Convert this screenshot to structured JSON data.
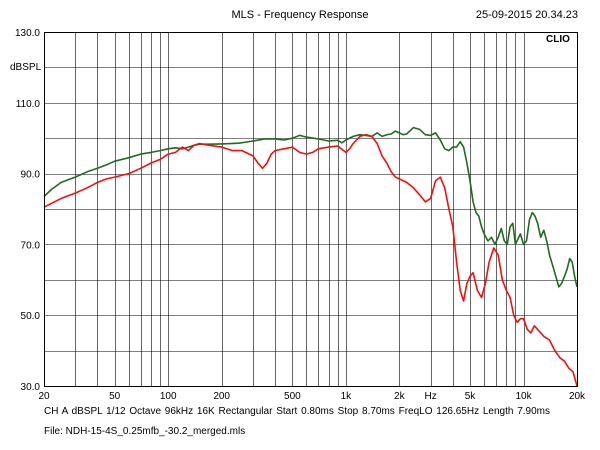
{
  "header": {
    "title": "MLS - Frequency Response",
    "timestamp": "25-09-2015 20.34.23",
    "brand": "CLIO"
  },
  "footer": {
    "info_line": "CH A  dBSPL  1/12 Octave  96kHz  16K  Rectangular  Start 0.80ms  Stop 8.70ms  FreqLO 126.65Hz  Length 7.90ms",
    "file_line": "File: NDH-15-4S_0.25mfb_-30.2_merged.mls"
  },
  "colors": {
    "series_green": "#1f6b1f",
    "series_red": "#ee1111",
    "grid": "#000000"
  },
  "chart_data": {
    "type": "line",
    "title": "MLS - Frequency Response",
    "xlabel": "",
    "ylabel": "dBSPL",
    "x_scale": "log",
    "xlim": [
      20,
      20000
    ],
    "ylim": [
      30,
      130
    ],
    "x_ticks": [
      {
        "value": 20,
        "label": "20"
      },
      {
        "value": 50,
        "label": "50"
      },
      {
        "value": 100,
        "label": "100"
      },
      {
        "value": 200,
        "label": "200"
      },
      {
        "value": 500,
        "label": "500"
      },
      {
        "value": 1000,
        "label": "1k"
      },
      {
        "value": 2000,
        "label": "2k"
      },
      {
        "value": 3000,
        "label": "Hz"
      },
      {
        "value": 5000,
        "label": "5k"
      },
      {
        "value": 10000,
        "label": "10k"
      },
      {
        "value": 20000,
        "label": "20k"
      }
    ],
    "y_ticks": [
      {
        "value": 130,
        "label": "130.0"
      },
      {
        "value": 110,
        "label": "110.0"
      },
      {
        "value": 90,
        "label": "90.0"
      },
      {
        "value": 70,
        "label": "70.0"
      },
      {
        "value": 50,
        "label": "50.0"
      },
      {
        "value": 30,
        "label": "30.0"
      }
    ],
    "grid": true,
    "series": [
      {
        "color": "#1f6b1f",
        "points": [
          [
            20,
            83.5
          ],
          [
            22,
            85.5
          ],
          [
            25,
            87.5
          ],
          [
            30,
            89
          ],
          [
            35,
            90.5
          ],
          [
            40,
            91.5
          ],
          [
            45,
            92.5
          ],
          [
            50,
            93.5
          ],
          [
            60,
            94.5
          ],
          [
            70,
            95.5
          ],
          [
            80,
            96
          ],
          [
            90,
            96.5
          ],
          [
            100,
            97
          ],
          [
            110,
            97.3
          ],
          [
            120,
            97
          ],
          [
            130,
            97.5
          ],
          [
            140,
            98
          ],
          [
            150,
            98.3
          ],
          [
            170,
            98.3
          ],
          [
            200,
            98.4
          ],
          [
            250,
            98.6
          ],
          [
            300,
            99.2
          ],
          [
            350,
            99.8
          ],
          [
            400,
            99.8
          ],
          [
            450,
            99.5
          ],
          [
            500,
            100
          ],
          [
            550,
            100.8
          ],
          [
            600,
            100.3
          ],
          [
            700,
            99.8
          ],
          [
            800,
            99.2
          ],
          [
            900,
            99.4
          ],
          [
            950,
            98.7
          ],
          [
            1000,
            99.5
          ],
          [
            1100,
            100.5
          ],
          [
            1200,
            101
          ],
          [
            1300,
            100.8
          ],
          [
            1400,
            100.5
          ],
          [
            1500,
            101.5
          ],
          [
            1600,
            100.5
          ],
          [
            1700,
            101
          ],
          [
            1800,
            101.2
          ],
          [
            1900,
            102
          ],
          [
            2000,
            101.5
          ],
          [
            2100,
            101
          ],
          [
            2200,
            101.2
          ],
          [
            2400,
            103
          ],
          [
            2600,
            102.5
          ],
          [
            2800,
            101
          ],
          [
            3000,
            100.8
          ],
          [
            3200,
            101.5
          ],
          [
            3400,
            99.5
          ],
          [
            3600,
            97
          ],
          [
            3800,
            96.5
          ],
          [
            4000,
            97.5
          ],
          [
            4200,
            97.5
          ],
          [
            4400,
            99
          ],
          [
            4600,
            97.5
          ],
          [
            4800,
            93
          ],
          [
            5000,
            88
          ],
          [
            5200,
            82
          ],
          [
            5400,
            79
          ],
          [
            5600,
            78
          ],
          [
            5800,
            75
          ],
          [
            6000,
            73
          ],
          [
            6300,
            71
          ],
          [
            6600,
            72
          ],
          [
            6900,
            70
          ],
          [
            7200,
            72
          ],
          [
            7500,
            74.5
          ],
          [
            7800,
            71
          ],
          [
            8100,
            70
          ],
          [
            8400,
            75
          ],
          [
            8700,
            76
          ],
          [
            9000,
            70
          ],
          [
            9300,
            71.5
          ],
          [
            9600,
            73
          ],
          [
            10000,
            70
          ],
          [
            10400,
            71
          ],
          [
            10800,
            77
          ],
          [
            11200,
            79
          ],
          [
            11600,
            78
          ],
          [
            12000,
            76
          ],
          [
            12500,
            72
          ],
          [
            13000,
            74
          ],
          [
            13500,
            71
          ],
          [
            14000,
            67
          ],
          [
            14600,
            64
          ],
          [
            15200,
            61
          ],
          [
            15800,
            58
          ],
          [
            16400,
            59
          ],
          [
            17000,
            61
          ],
          [
            17600,
            63
          ],
          [
            18200,
            66
          ],
          [
            18800,
            65
          ],
          [
            19400,
            61
          ],
          [
            20000,
            58
          ]
        ]
      },
      {
        "color": "#ee1111",
        "points": [
          [
            20,
            80.5
          ],
          [
            25,
            83
          ],
          [
            30,
            84.5
          ],
          [
            35,
            86
          ],
          [
            40,
            87.5
          ],
          [
            45,
            88.5
          ],
          [
            50,
            89
          ],
          [
            60,
            90
          ],
          [
            70,
            91.5
          ],
          [
            80,
            93
          ],
          [
            90,
            94
          ],
          [
            100,
            95.5
          ],
          [
            110,
            96
          ],
          [
            120,
            97.5
          ],
          [
            130,
            96.5
          ],
          [
            140,
            98
          ],
          [
            150,
            98.5
          ],
          [
            170,
            98
          ],
          [
            200,
            97.5
          ],
          [
            230,
            96.5
          ],
          [
            260,
            96.5
          ],
          [
            300,
            95
          ],
          [
            320,
            93
          ],
          [
            340,
            91.5
          ],
          [
            360,
            93
          ],
          [
            380,
            95.5
          ],
          [
            400,
            96.5
          ],
          [
            450,
            97
          ],
          [
            500,
            97.5
          ],
          [
            550,
            96
          ],
          [
            600,
            95.5
          ],
          [
            650,
            96
          ],
          [
            700,
            97
          ],
          [
            800,
            97.5
          ],
          [
            900,
            97.8
          ],
          [
            1000,
            96
          ],
          [
            1050,
            97
          ],
          [
            1100,
            98.5
          ],
          [
            1200,
            100.5
          ],
          [
            1300,
            101
          ],
          [
            1400,
            100.5
          ],
          [
            1500,
            98.5
          ],
          [
            1600,
            95
          ],
          [
            1700,
            93
          ],
          [
            1800,
            90.5
          ],
          [
            1900,
            89
          ],
          [
            2000,
            88.5
          ],
          [
            2200,
            87.5
          ],
          [
            2400,
            86
          ],
          [
            2600,
            84
          ],
          [
            2800,
            82
          ],
          [
            3000,
            83
          ],
          [
            3200,
            88
          ],
          [
            3400,
            89
          ],
          [
            3600,
            86
          ],
          [
            3800,
            80
          ],
          [
            4000,
            75
          ],
          [
            4200,
            65
          ],
          [
            4400,
            57
          ],
          [
            4600,
            54
          ],
          [
            4800,
            59
          ],
          [
            5000,
            61
          ],
          [
            5200,
            62
          ],
          [
            5500,
            57
          ],
          [
            5800,
            55
          ],
          [
            6100,
            59
          ],
          [
            6400,
            65
          ],
          [
            6800,
            69
          ],
          [
            7200,
            67
          ],
          [
            7600,
            60
          ],
          [
            8000,
            57
          ],
          [
            8400,
            55
          ],
          [
            8800,
            50
          ],
          [
            9200,
            48
          ],
          [
            9600,
            49
          ],
          [
            10000,
            49
          ],
          [
            10500,
            46
          ],
          [
            11000,
            45
          ],
          [
            11500,
            47
          ],
          [
            12000,
            46
          ],
          [
            13000,
            44
          ],
          [
            14000,
            43
          ],
          [
            15000,
            40
          ],
          [
            16000,
            38
          ],
          [
            17000,
            37
          ],
          [
            18000,
            35
          ],
          [
            19000,
            34
          ],
          [
            20000,
            30
          ]
        ]
      }
    ]
  }
}
